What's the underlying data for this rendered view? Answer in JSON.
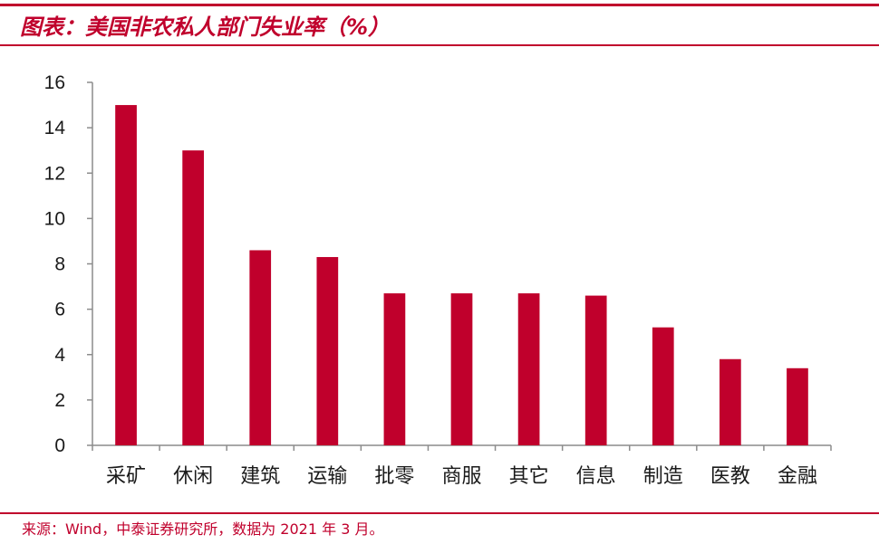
{
  "colors": {
    "accent": "#c0002c",
    "text": "#1a1a1a",
    "axis": "#8c8c8c"
  },
  "chart_data": {
    "type": "bar",
    "title": "图表：美国非农私人部门失业率（%）",
    "categories": [
      "采矿",
      "休闲",
      "建筑",
      "运输",
      "批零",
      "商服",
      "其它",
      "信息",
      "制造",
      "医教",
      "金融"
    ],
    "values": [
      15.0,
      13.0,
      8.6,
      8.3,
      6.7,
      6.7,
      6.7,
      6.6,
      5.2,
      3.8,
      3.4
    ],
    "yticks": [
      0,
      2,
      4,
      6,
      8,
      10,
      12,
      14,
      16
    ],
    "ylim": [
      0,
      16
    ],
    "xlabel": "",
    "ylabel": "",
    "grid": false,
    "legend": "none"
  },
  "footer": {
    "source": "来源：Wind，中泰证券研究所，数据为 2021 年 3 月。"
  }
}
